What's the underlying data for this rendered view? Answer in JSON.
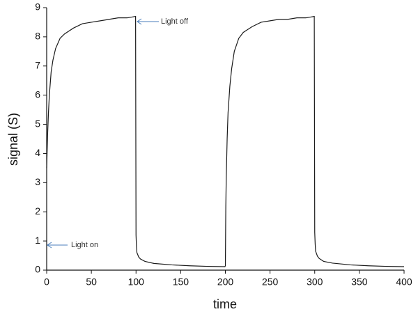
{
  "chart_data": {
    "type": "line",
    "x_label": "time",
    "y_label": "signal (S)",
    "xlim": [
      0,
      400
    ],
    "ylim": [
      0,
      9
    ],
    "xticks": [
      0,
      50,
      100,
      150,
      200,
      250,
      300,
      350,
      400
    ],
    "yticks": [
      0,
      1,
      2,
      3,
      4,
      5,
      6,
      7,
      8,
      9
    ],
    "annotations": [
      "Light off",
      "Light on"
    ],
    "annotation_color": "#4a7ebb",
    "series": [
      {
        "color": "#1a1a1a",
        "x": [
          0,
          1,
          2,
          3,
          5,
          7,
          10,
          15,
          20,
          25,
          30,
          40,
          50,
          60,
          70,
          80,
          90,
          99.5,
          100,
          100.5,
          101,
          103,
          105,
          110,
          120,
          140,
          160,
          180,
          199.5,
          200,
          200.5,
          201,
          202,
          203,
          205,
          207,
          210,
          215,
          220,
          225,
          230,
          240,
          250,
          260,
          270,
          280,
          290,
          299.5,
          300,
          300.5,
          301,
          303,
          305,
          310,
          320,
          340,
          360,
          380,
          400
        ],
        "values": [
          3.5,
          4.6,
          5.4,
          6.0,
          6.8,
          7.2,
          7.6,
          7.95,
          8.1,
          8.2,
          8.3,
          8.45,
          8.5,
          8.55,
          8.6,
          8.65,
          8.65,
          8.7,
          1.2,
          0.8,
          0.6,
          0.45,
          0.38,
          0.3,
          0.23,
          0.18,
          0.15,
          0.13,
          0.12,
          0.15,
          2.2,
          3.2,
          4.5,
          5.4,
          6.3,
          6.9,
          7.5,
          7.95,
          8.15,
          8.25,
          8.35,
          8.5,
          8.55,
          8.6,
          8.6,
          8.65,
          8.65,
          8.7,
          1.3,
          0.9,
          0.65,
          0.48,
          0.4,
          0.3,
          0.24,
          0.18,
          0.15,
          0.13,
          0.12
        ]
      }
    ]
  }
}
